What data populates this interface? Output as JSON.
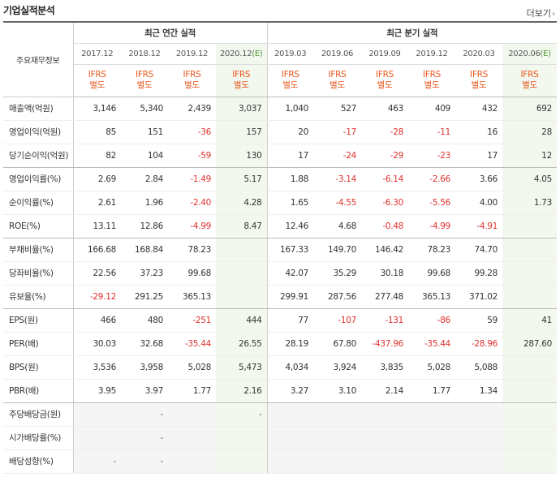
{
  "title": "기업실적분석",
  "more": {
    "label": "더보기",
    "arrow": "›"
  },
  "header": {
    "corner": "주요재무정보",
    "annual_group": "최근 연간 실적",
    "quarterly_group": "최근 분기 실적",
    "annual_periods": [
      "2017.12",
      "2018.12",
      "2019.12",
      "2020.12"
    ],
    "quarterly_periods": [
      "2019.03",
      "2019.06",
      "2019.09",
      "2019.12",
      "2020.03",
      "2020.06"
    ],
    "estimate_suffix": "(E)",
    "ifrs_line1": "IFRS",
    "ifrs_line2": "별도"
  },
  "rows": [
    {
      "label": "매출액(억원)",
      "values": [
        "3,146",
        "5,340",
        "2,439",
        "3,037",
        "1,040",
        "527",
        "463",
        "409",
        "432",
        "692"
      ]
    },
    {
      "label": "영업이익(억원)",
      "values": [
        "85",
        "151",
        "-36",
        "157",
        "20",
        "-17",
        "-28",
        "-11",
        "16",
        "28"
      ]
    },
    {
      "label": "당기순이익(억원)",
      "values": [
        "82",
        "104",
        "-59",
        "130",
        "17",
        "-24",
        "-29",
        "-23",
        "17",
        "12"
      ]
    },
    {
      "label": "영업이익률(%)",
      "values": [
        "2.69",
        "2.84",
        "-1.49",
        "5.17",
        "1.88",
        "-3.14",
        "-6.14",
        "-2.66",
        "3.66",
        "4.05"
      ]
    },
    {
      "label": "순이익률(%)",
      "values": [
        "2.61",
        "1.96",
        "-2.40",
        "4.28",
        "1.65",
        "-4.55",
        "-6.30",
        "-5.56",
        "4.00",
        "1.73"
      ]
    },
    {
      "label": "ROE(%)",
      "values": [
        "13.11",
        "12.86",
        "-4.99",
        "8.47",
        "12.46",
        "4.68",
        "-0.48",
        "-4.99",
        "-4.91",
        ""
      ]
    },
    {
      "label": "부채비율(%)",
      "values": [
        "166.68",
        "168.84",
        "78.23",
        "",
        "167.33",
        "149.70",
        "146.42",
        "78.23",
        "74.70",
        ""
      ]
    },
    {
      "label": "당좌비율(%)",
      "values": [
        "22.56",
        "37.23",
        "99.68",
        "",
        "42.07",
        "35.29",
        "30.18",
        "99.68",
        "99.28",
        ""
      ]
    },
    {
      "label": "유보율(%)",
      "values": [
        "-29.12",
        "291.25",
        "365.13",
        "",
        "299.91",
        "287.56",
        "277.48",
        "365.13",
        "371.02",
        ""
      ]
    },
    {
      "label": "EPS(원)",
      "values": [
        "466",
        "480",
        "-251",
        "444",
        "77",
        "-107",
        "-131",
        "-86",
        "59",
        "41"
      ]
    },
    {
      "label": "PER(배)",
      "values": [
        "30.03",
        "32.68",
        "-35.44",
        "26.55",
        "28.19",
        "67.80",
        "-437.96",
        "-35.44",
        "-28.96",
        "287.60"
      ]
    },
    {
      "label": "BPS(원)",
      "values": [
        "3,536",
        "3,958",
        "5,028",
        "5,473",
        "4,034",
        "3,924",
        "3,835",
        "5,028",
        "5,088",
        ""
      ]
    },
    {
      "label": "PBR(배)",
      "values": [
        "3.95",
        "3.97",
        "1.77",
        "2.16",
        "3.27",
        "3.10",
        "2.14",
        "1.77",
        "1.34",
        ""
      ]
    },
    {
      "label": "주당배당금(원)",
      "values": [
        "",
        "-",
        "",
        "-",
        "",
        "",
        "",
        "",
        "",
        ""
      ]
    },
    {
      "label": "시가배당률(%)",
      "values": [
        "",
        "-",
        "",
        "",
        "",
        "",
        "",
        "",
        "",
        ""
      ]
    },
    {
      "label": "배당성향(%)",
      "values": [
        "-",
        "-",
        "",
        "",
        "",
        "",
        "",
        "",
        "",
        ""
      ]
    }
  ],
  "group_end_rows": [
    2,
    5,
    8,
    12
  ],
  "grey_tail_rows": [
    13,
    14,
    15
  ],
  "colors": {
    "negative": "#e0302d",
    "ifrs": "#e8561b",
    "estimate_bg": "#f3f8ef",
    "estimate_text": "#4a9a35"
  }
}
